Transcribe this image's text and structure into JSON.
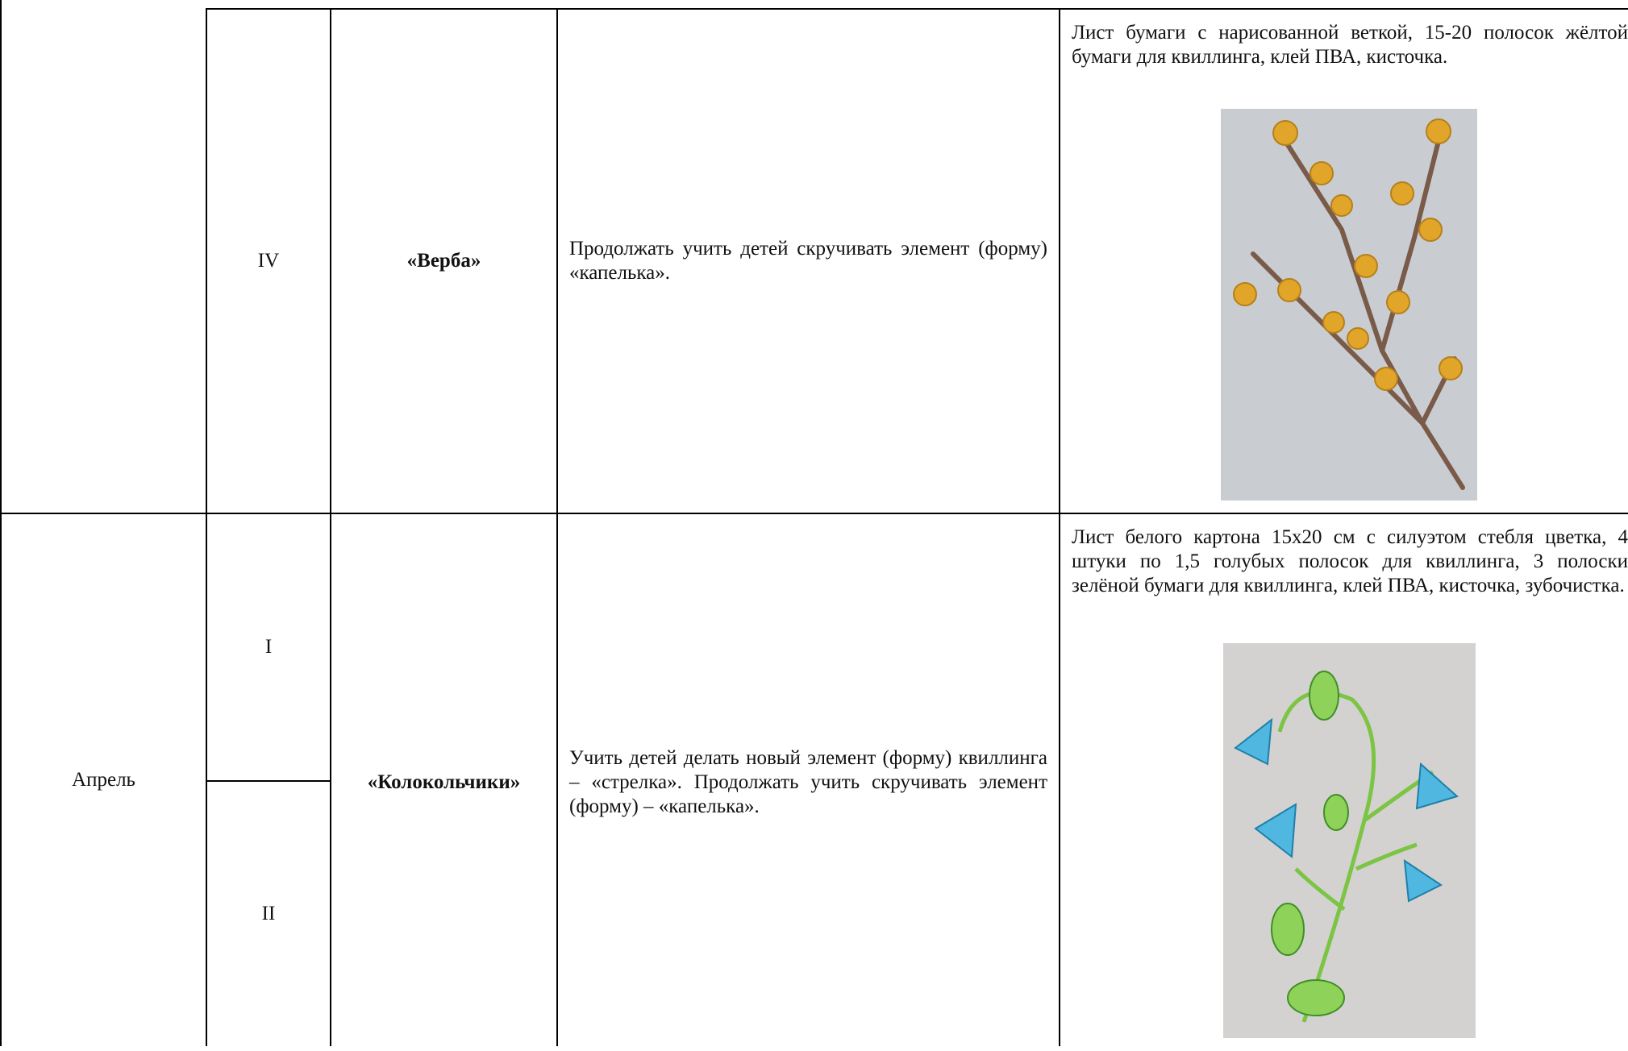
{
  "table": {
    "rows": [
      {
        "weeks": [
          "IV"
        ],
        "title": "«Верба»",
        "goal": "Продолжать учить детей скручивать элемент (форму) «капелька».",
        "materials": "Лист бумаги с нарисованной веткой, 15-20 полосок жёлтой бумаги для квиллинга, клей ПВА, кисточка."
      },
      {
        "month": "Апрель",
        "weeks": [
          "I",
          "II"
        ],
        "title": "«Колокольчики»",
        "goal": "Учить детей делать новый элемент (форму) квиллинга – «стрелка». Продолжать учить скручивать элемент (форму) – «капелька».",
        "materials": "Лист белого картона 15х20 см с силуэтом стебля цветка, 4 штуки по 1,5 голубых полосок для квиллинга, 3 полоски зелёной бумаги для квиллинга, клей ПВА, кисточка, зубочистка."
      }
    ]
  }
}
